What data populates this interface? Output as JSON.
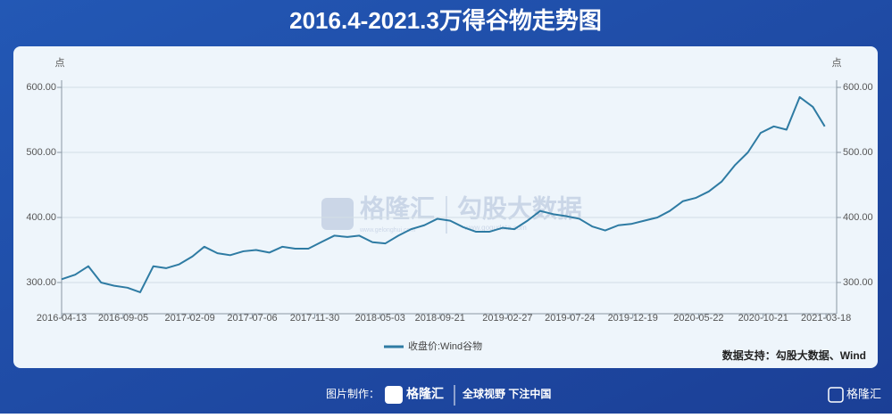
{
  "chart_data": {
    "type": "line",
    "title": "2016.4-2021.3万得谷物走势图",
    "y_axis_label": "点",
    "y2_axis_label": "点",
    "source": "数据支持：勾股大数据、Wind",
    "x": [
      "2016-04-13",
      "2016-05-15",
      "2016-06-15",
      "2016-07-15",
      "2016-08-15",
      "2016-09-15",
      "2016-10-15",
      "2016-11-15",
      "2016-12-15",
      "2017-01-15",
      "2017-02-15",
      "2017-03-15",
      "2017-04-15",
      "2017-05-15",
      "2017-06-15",
      "2017-07-15",
      "2017-08-15",
      "2017-09-15",
      "2017-10-15",
      "2017-11-15",
      "2017-12-15",
      "2018-01-15",
      "2018-02-15",
      "2018-03-15",
      "2018-04-15",
      "2018-05-15",
      "2018-06-15",
      "2018-07-15",
      "2018-08-15",
      "2018-09-15",
      "2018-10-15",
      "2018-11-15",
      "2018-12-15",
      "2019-01-15",
      "2019-02-15",
      "2019-03-15",
      "2019-04-15",
      "2019-05-15",
      "2019-06-15",
      "2019-07-15",
      "2019-08-15",
      "2019-09-15",
      "2019-10-15",
      "2019-11-15",
      "2019-12-15",
      "2020-01-15",
      "2020-02-15",
      "2020-03-15",
      "2020-04-15",
      "2020-05-15",
      "2020-06-15",
      "2020-07-15",
      "2020-08-15",
      "2020-09-15",
      "2020-10-15",
      "2020-11-15",
      "2020-12-15",
      "2021-01-15",
      "2021-02-15",
      "2021-03-15"
    ],
    "series": [
      {
        "name": "收盘价:Wind谷物",
        "color": "#2e7ba3",
        "values": [
          305,
          312,
          325,
          300,
          295,
          292,
          285,
          325,
          322,
          328,
          340,
          355,
          345,
          342,
          348,
          350,
          346,
          355,
          352,
          352,
          362,
          372,
          370,
          372,
          362,
          360,
          372,
          382,
          388,
          398,
          395,
          385,
          378,
          378,
          384,
          382,
          395,
          410,
          405,
          402,
          398,
          386,
          380,
          388,
          390,
          395,
          400,
          410,
          425,
          430,
          440,
          455,
          480,
          500,
          530,
          540,
          535,
          585,
          570,
          540
        ]
      }
    ],
    "xlim": [
      "2016-04-13",
      "2021-04-12"
    ],
    "xticks": [
      "2016-04-13",
      "2016-09-05",
      "2017-02-09",
      "2017-07-06",
      "2017-11-30",
      "2018-05-03",
      "2018-09-21",
      "2019-02-27",
      "2019-07-24",
      "2019-12-19",
      "2020-05-22",
      "2020-10-21",
      "2021-03-18"
    ],
    "ylim": [
      252,
      611
    ],
    "yticks": [
      {
        "value": 300,
        "label": "300.00"
      },
      {
        "value": 400,
        "label": "400.00"
      },
      {
        "value": 500,
        "label": "500.00"
      },
      {
        "value": 600,
        "label": "600.00"
      }
    ],
    "y2lim": [
      252,
      611
    ],
    "y2ticks": [
      {
        "value": 300,
        "label": "300.00"
      },
      {
        "value": 400,
        "label": "400.00"
      },
      {
        "value": 500,
        "label": "500.00"
      },
      {
        "value": 600,
        "label": "600.00"
      }
    ],
    "grid": true,
    "legend": "bottom"
  },
  "watermark": {
    "brand": "格隆汇",
    "brand_url": "www.gelonghui.com",
    "partner": "勾股大数据",
    "partner_url": "www.gogudata.com"
  },
  "footer": {
    "made_by": "图片制作：",
    "brand": "格隆汇",
    "slogan": "全球视野 下注中国",
    "corner_brand": "格隆汇"
  }
}
